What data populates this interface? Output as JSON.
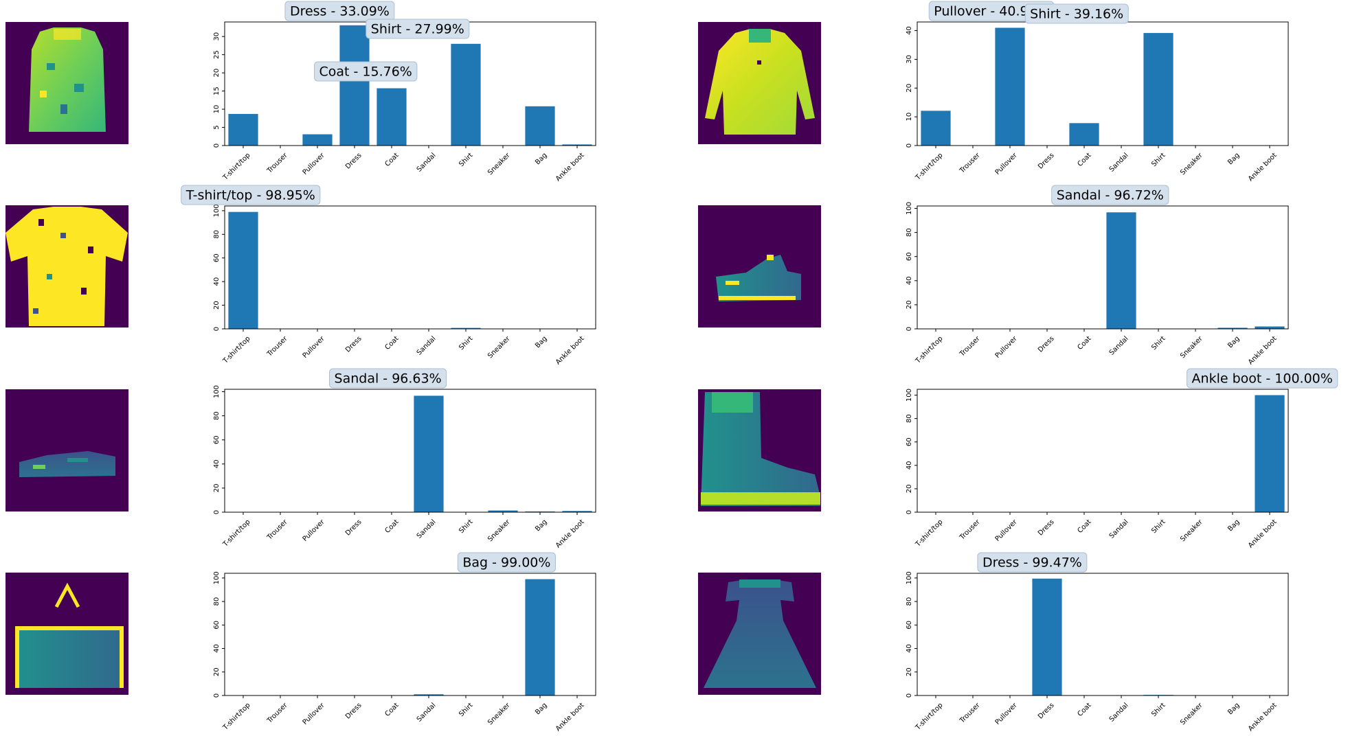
{
  "colors": {
    "bar": "#1f77b4",
    "image_background": "#440154",
    "annotation_fill": "#d4e1ed",
    "annotation_edge": "#a9bfd4",
    "axis": "#000000"
  },
  "categories": [
    "T-shirt/top",
    "Trouser",
    "Pullover",
    "Dress",
    "Coat",
    "Sandal",
    "Shirt",
    "Sneaker",
    "Bag",
    "Ankle boot"
  ],
  "chart_data": [
    {
      "type": "bar",
      "image_icon": "coat-thumbnail",
      "categories": [
        "T-shirt/top",
        "Trouser",
        "Pullover",
        "Dress",
        "Coat",
        "Sandal",
        "Shirt",
        "Sneaker",
        "Bag",
        "Ankle boot"
      ],
      "values": [
        8.7,
        0,
        3.1,
        33.09,
        15.76,
        0,
        27.99,
        0,
        10.8,
        0.3
      ],
      "ylim": [
        0,
        34
      ],
      "yticks": [
        0,
        5,
        10,
        15,
        20,
        25,
        30
      ],
      "annotations": [
        {
          "label": "Dress - 33.09%",
          "category": "Dress"
        },
        {
          "label": "Shirt - 27.99%",
          "category": "Shirt"
        },
        {
          "label": "Coat - 15.76%",
          "category": "Coat"
        }
      ]
    },
    {
      "type": "bar",
      "image_icon": "pullover-thumbnail",
      "categories": [
        "T-shirt/top",
        "Trouser",
        "Pullover",
        "Dress",
        "Coat",
        "Sandal",
        "Shirt",
        "Sneaker",
        "Bag",
        "Ankle boot"
      ],
      "values": [
        12.1,
        0,
        40.98,
        0,
        7.8,
        0,
        39.16,
        0,
        0,
        0
      ],
      "ylim": [
        0,
        43
      ],
      "yticks": [
        0,
        10,
        20,
        30,
        40
      ],
      "annotations": [
        {
          "label": "Pullover - 40.98%",
          "category": "Pullover"
        },
        {
          "label": "Shirt - 39.16%",
          "category": "Shirt"
        }
      ]
    },
    {
      "type": "bar",
      "image_icon": "tshirt-thumbnail",
      "categories": [
        "T-shirt/top",
        "Trouser",
        "Pullover",
        "Dress",
        "Coat",
        "Sandal",
        "Shirt",
        "Sneaker",
        "Bag",
        "Ankle boot"
      ],
      "values": [
        98.95,
        0,
        0,
        0,
        0,
        0,
        0.8,
        0,
        0,
        0
      ],
      "ylim": [
        0,
        104
      ],
      "yticks": [
        0,
        20,
        40,
        60,
        80,
        100
      ],
      "annotations": [
        {
          "label": "T-shirt/top - 98.95%",
          "category": "T-shirt/top"
        }
      ]
    },
    {
      "type": "bar",
      "image_icon": "sandal-thumbnail",
      "categories": [
        "T-shirt/top",
        "Trouser",
        "Pullover",
        "Dress",
        "Coat",
        "Sandal",
        "Shirt",
        "Sneaker",
        "Bag",
        "Ankle boot"
      ],
      "values": [
        0,
        0,
        0,
        0,
        0,
        96.72,
        0,
        0,
        0.9,
        2.0
      ],
      "ylim": [
        0,
        102
      ],
      "yticks": [
        0,
        20,
        40,
        60,
        80,
        100
      ],
      "annotations": [
        {
          "label": "Sandal - 96.72%",
          "category": "Sandal"
        }
      ]
    },
    {
      "type": "bar",
      "image_icon": "sandal-thumbnail",
      "categories": [
        "T-shirt/top",
        "Trouser",
        "Pullover",
        "Dress",
        "Coat",
        "Sandal",
        "Shirt",
        "Sneaker",
        "Bag",
        "Ankle boot"
      ],
      "values": [
        0,
        0,
        0,
        0,
        0,
        96.63,
        0,
        1.4,
        0.6,
        1.0
      ],
      "ylim": [
        0,
        102
      ],
      "yticks": [
        0,
        20,
        40,
        60,
        80,
        100
      ],
      "annotations": [
        {
          "label": "Sandal - 96.63%",
          "category": "Sandal"
        }
      ]
    },
    {
      "type": "bar",
      "image_icon": "ankle-boot-thumbnail",
      "categories": [
        "T-shirt/top",
        "Trouser",
        "Pullover",
        "Dress",
        "Coat",
        "Sandal",
        "Shirt",
        "Sneaker",
        "Bag",
        "Ankle boot"
      ],
      "values": [
        0,
        0,
        0,
        0,
        0,
        0,
        0,
        0,
        0,
        100.0
      ],
      "ylim": [
        0,
        105
      ],
      "yticks": [
        0,
        20,
        40,
        60,
        80,
        100
      ],
      "annotations": [
        {
          "label": "Ankle boot - 100.00%",
          "category": "Ankle boot"
        }
      ]
    },
    {
      "type": "bar",
      "image_icon": "bag-thumbnail",
      "categories": [
        "T-shirt/top",
        "Trouser",
        "Pullover",
        "Dress",
        "Coat",
        "Sandal",
        "Shirt",
        "Sneaker",
        "Bag",
        "Ankle boot"
      ],
      "values": [
        0,
        0,
        0,
        0,
        0,
        1.0,
        0,
        0,
        99.0,
        0
      ],
      "ylim": [
        0,
        104
      ],
      "yticks": [
        0,
        20,
        40,
        60,
        80,
        100
      ],
      "annotations": [
        {
          "label": "Bag - 99.00%",
          "category": "Bag"
        }
      ]
    },
    {
      "type": "bar",
      "image_icon": "dress-thumbnail",
      "categories": [
        "T-shirt/top",
        "Trouser",
        "Pullover",
        "Dress",
        "Coat",
        "Sandal",
        "Shirt",
        "Sneaker",
        "Bag",
        "Ankle boot"
      ],
      "values": [
        0,
        0,
        0,
        99.47,
        0,
        0,
        0.5,
        0,
        0,
        0
      ],
      "ylim": [
        0,
        104
      ],
      "yticks": [
        0,
        20,
        40,
        60,
        80,
        100
      ],
      "annotations": [
        {
          "label": "Dress - 99.47%",
          "category": "Dress"
        }
      ]
    }
  ]
}
